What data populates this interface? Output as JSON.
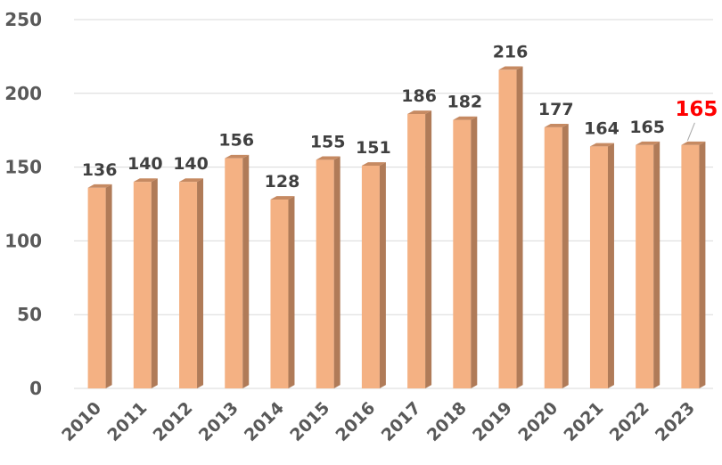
{
  "chart_data": {
    "type": "bar",
    "title": "",
    "xlabel": "",
    "ylabel": "",
    "categories": [
      "2010",
      "2011",
      "2012",
      "2013",
      "2014",
      "2015",
      "2016",
      "2017",
      "2018",
      "2019",
      "2020",
      "2021",
      "2022",
      "2023"
    ],
    "values": [
      136,
      140,
      140,
      156,
      128,
      155,
      151,
      186,
      182,
      216,
      177,
      164,
      165,
      165
    ],
    "data_labels": [
      "136",
      "140",
      "140",
      "156",
      "128",
      "155",
      "151",
      "186",
      "182",
      "216",
      "177",
      "164",
      "165",
      "165"
    ],
    "highlight_index": 13,
    "ylim": [
      0,
      250
    ],
    "yticks": [
      0,
      50,
      100,
      150,
      200,
      250
    ],
    "ytick_labels": [
      "0",
      "50",
      "100",
      "150",
      "200",
      "250"
    ],
    "grid": true,
    "legend": "none",
    "colors": {
      "bar_front": "#f4b183",
      "bar_side": "#b07b58",
      "bar_top": "#c68a62",
      "highlight_label": "#ff0000",
      "label": "#404040",
      "axis_text": "#595959",
      "grid": "#d9d9d9"
    }
  }
}
